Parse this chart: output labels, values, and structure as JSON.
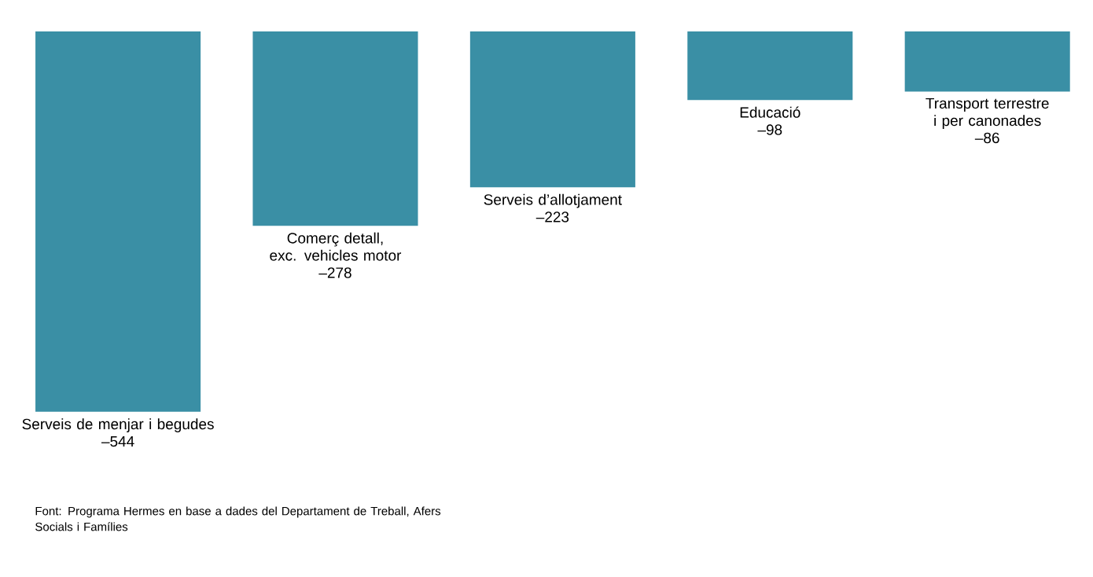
{
  "chart_data": {
    "type": "bar",
    "categories": [
      "Serveis de menjar i begudes",
      "Comerç detall, exc. vehicles motor",
      "Serveis d’allotjament",
      "Educació",
      "Transport terrestre i per canonades"
    ],
    "values": [
      -544,
      -278,
      -223,
      -98,
      -86
    ],
    "value_labels": [
      "–544",
      "–278",
      "–223",
      "–98",
      "–86"
    ],
    "color": "#3a8fa5",
    "annotations": [
      "Font: Programa Hermes en base a dades del Departament de Treball, Afers Socials i Famílies"
    ]
  }
}
